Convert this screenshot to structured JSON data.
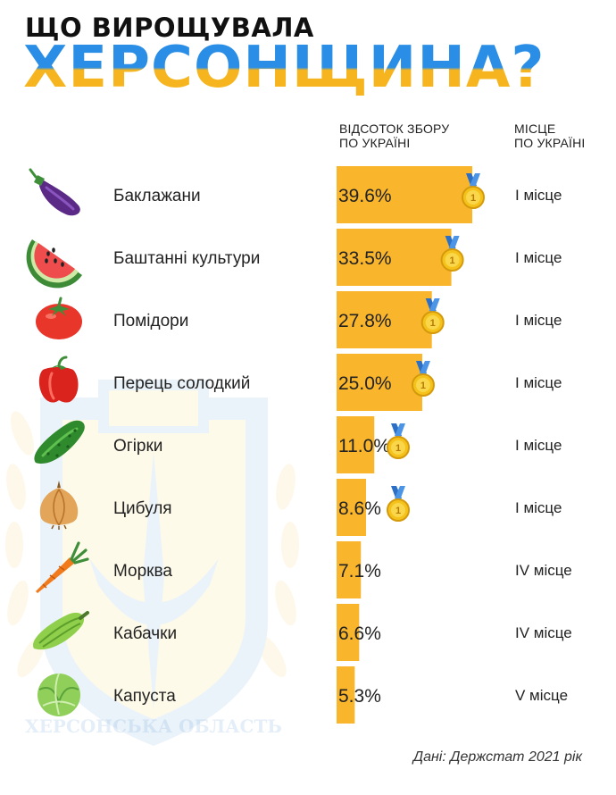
{
  "header": {
    "title_line1": "ЩО ВИРОЩУВАЛА",
    "title_line2": "ХЕРСОНЩИНА?",
    "col_percent": [
      "ВІДСОТОК ЗБОРУ",
      "ПО УКРАЇНІ"
    ],
    "col_place": [
      "МІСЦЕ",
      "ПО УКРАЇНІ"
    ]
  },
  "watermark": {
    "emblem_text": "ХЕРСОНСЬКА ОБЛАСТЬ"
  },
  "chart_data": {
    "type": "bar",
    "orientation": "horizontal",
    "categories": [
      "Баклажани",
      "Баштанні культури",
      "Помідори",
      "Перець солодкий",
      "Огірки",
      "Цибуля",
      "Морква",
      "Кабачки",
      "Капуста"
    ],
    "values": [
      39.6,
      33.5,
      27.8,
      25.0,
      11.0,
      8.6,
      7.1,
      6.6,
      5.3
    ],
    "value_labels": [
      "39.6%",
      "33.5%",
      "27.8%",
      "25.0%",
      "11.0%",
      "8.6%",
      "7.1%",
      "6.6%",
      "5.3%"
    ],
    "places": [
      "I місце",
      "I місце",
      "I місце",
      "I місце",
      "I місце",
      "I місце",
      "IV місце",
      "IV місце",
      "V місце"
    ],
    "medals": [
      true,
      true,
      true,
      true,
      true,
      true,
      false,
      false,
      false
    ],
    "medal_label": "1",
    "icons": [
      "eggplant-icon",
      "watermelon-icon",
      "tomato-icon",
      "bell-pepper-icon",
      "cucumber-icon",
      "onion-icon",
      "carrot-icon",
      "zucchini-icon",
      "cabbage-icon"
    ],
    "bar_color": "#f9b52c",
    "xlim": [
      0,
      40
    ]
  },
  "source": "Дані: Держстат 2021 рік"
}
